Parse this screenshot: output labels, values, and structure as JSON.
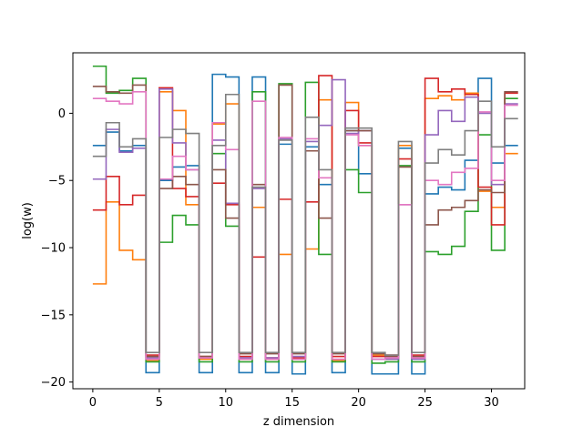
{
  "chart_data": {
    "type": "line",
    "step": "post",
    "xlabel": "z dimension",
    "ylabel": "log(w)",
    "xlim": [
      -1.5,
      32.5
    ],
    "ylim": [
      -20.5,
      4.5
    ],
    "xticks": [
      0,
      5,
      10,
      15,
      20,
      25,
      30
    ],
    "yticks": [
      0,
      -5,
      -10,
      -15,
      -20
    ],
    "grid": false,
    "x": [
      0,
      1,
      2,
      3,
      4,
      5,
      6,
      7,
      8,
      9,
      10,
      11,
      12,
      13,
      14,
      15,
      16,
      17,
      18,
      19,
      20,
      21,
      22,
      23,
      24,
      25,
      26,
      27,
      28,
      29,
      30,
      31
    ],
    "series": [
      {
        "color": "#1f77b4",
        "values": [
          -2.4,
          -1.4,
          -2.8,
          -2.4,
          -19.3,
          -5.0,
          -4.0,
          -3.9,
          -19.3,
          2.9,
          2.7,
          -19.3,
          2.7,
          -19.3,
          -2.3,
          -19.4,
          -2.5,
          -5.3,
          -19.3,
          -1.3,
          -4.5,
          -19.4,
          -19.4,
          -2.6,
          -19.4,
          -6.0,
          -5.5,
          -5.7,
          -3.5,
          2.6,
          -3.7,
          -2.4
        ]
      },
      {
        "color": "#ff7f0e",
        "values": [
          -12.7,
          -6.6,
          -10.2,
          -10.9,
          -18.4,
          1.6,
          0.2,
          -6.8,
          -18.3,
          -0.8,
          0.7,
          -18.3,
          -7.0,
          -18.3,
          -10.5,
          -18.3,
          -10.1,
          1.0,
          -18.4,
          0.8,
          -2.4,
          -18.0,
          -18.3,
          -2.4,
          -18.2,
          1.1,
          1.3,
          1.0,
          1.5,
          -5.8,
          -7.0,
          -3.0
        ]
      },
      {
        "color": "#2ca02c",
        "values": [
          3.5,
          1.5,
          1.7,
          2.6,
          -18.5,
          -9.6,
          -7.6,
          -8.3,
          -18.5,
          -3.0,
          -8.4,
          -18.5,
          1.6,
          -18.5,
          2.2,
          -18.5,
          2.3,
          -10.5,
          -18.5,
          -4.2,
          -5.9,
          -18.6,
          -18.5,
          -3.9,
          -18.5,
          -10.3,
          -10.5,
          -9.9,
          -7.3,
          -1.6,
          -10.2,
          1.1
        ]
      },
      {
        "color": "#d62728",
        "values": [
          -7.2,
          -4.7,
          -6.8,
          -6.1,
          -18.0,
          1.9,
          -5.6,
          -6.2,
          -18.1,
          -5.2,
          -6.8,
          -18.1,
          -10.7,
          -18.2,
          -6.4,
          -18.2,
          -6.6,
          2.8,
          -18.1,
          0.2,
          -2.2,
          -18.1,
          -18.0,
          -3.4,
          -18.0,
          2.6,
          1.6,
          1.8,
          1.4,
          -5.5,
          -8.3,
          1.5
        ]
      },
      {
        "color": "#9467bd",
        "values": [
          -4.9,
          -1.2,
          -2.9,
          -2.6,
          -18.2,
          1.8,
          -2.2,
          -4.2,
          -18.2,
          -2.0,
          -6.7,
          -18.2,
          -5.6,
          -18.2,
          -1.9,
          -18.1,
          -2.1,
          -0.9,
          2.5,
          -1.5,
          -1.3,
          -18.3,
          -18.3,
          -6.8,
          -18.3,
          -1.6,
          0.2,
          -0.6,
          1.2,
          0.0,
          -5.3,
          0.7
        ]
      },
      {
        "color": "#8c564b",
        "values": [
          2.0,
          1.6,
          1.5,
          2.1,
          -18.1,
          -5.6,
          -4.7,
          -5.3,
          -18.1,
          -4.2,
          -7.8,
          -17.9,
          -5.3,
          -17.9,
          2.1,
          -17.9,
          -2.8,
          -7.8,
          -17.9,
          -1.3,
          -1.3,
          -17.9,
          -18.1,
          -4.0,
          -18.1,
          -8.3,
          -7.2,
          -7.0,
          -6.5,
          -5.7,
          -5.9,
          1.6
        ]
      },
      {
        "color": "#e377c2",
        "values": [
          1.1,
          0.9,
          0.7,
          1.6,
          -18.3,
          -4.9,
          -3.2,
          -4.2,
          -18.2,
          -0.7,
          -2.7,
          -18.3,
          0.9,
          -18.3,
          -1.8,
          -18.3,
          -1.9,
          -4.8,
          -18.3,
          -1.6,
          -2.4,
          -18.3,
          -18.2,
          -6.8,
          -18.2,
          -5.0,
          -5.3,
          -4.4,
          -4.1,
          0.1,
          -5.0,
          0.6
        ]
      },
      {
        "color": "#7f7f7f",
        "values": [
          -3.2,
          -0.7,
          -2.5,
          -1.9,
          -17.8,
          -1.8,
          -1.2,
          -1.5,
          -17.8,
          -2.4,
          1.4,
          -17.8,
          -5.5,
          -17.8,
          -2.0,
          -17.8,
          -0.3,
          -4.2,
          -17.8,
          -1.1,
          -1.1,
          -17.8,
          -18.0,
          -2.1,
          -17.8,
          -3.7,
          -2.7,
          -3.1,
          -1.3,
          0.9,
          -2.5,
          -0.4
        ]
      }
    ]
  }
}
